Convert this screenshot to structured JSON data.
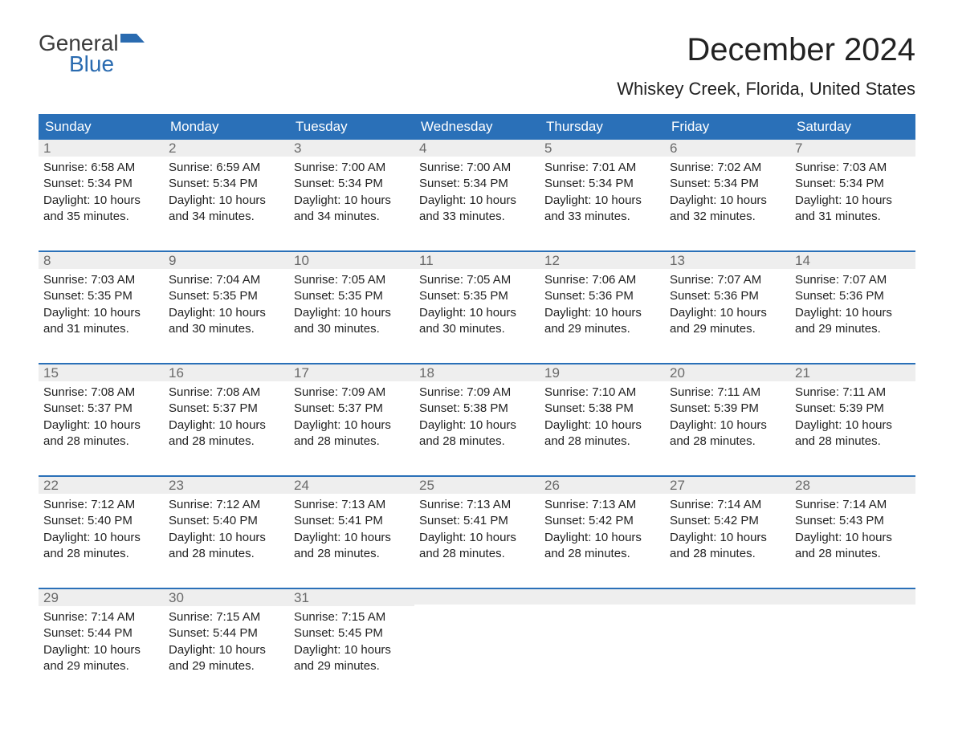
{
  "logo": {
    "general": "General",
    "blue": "Blue"
  },
  "title": "December 2024",
  "subtitle": "Whiskey Creek, Florida, United States",
  "colors": {
    "header_bg": "#2a70b8",
    "header_text": "#ffffff",
    "daynum_bg": "#eeeeee",
    "daynum_text": "#6a6a6a",
    "body_text": "#222222",
    "logo_blue": "#2a6bb0",
    "background": "#ffffff"
  },
  "day_headers": [
    "Sunday",
    "Monday",
    "Tuesday",
    "Wednesday",
    "Thursday",
    "Friday",
    "Saturday"
  ],
  "weeks": [
    [
      {
        "n": "1",
        "sunrise": "Sunrise: 6:58 AM",
        "sunset": "Sunset: 5:34 PM",
        "dl1": "Daylight: 10 hours",
        "dl2": "and 35 minutes."
      },
      {
        "n": "2",
        "sunrise": "Sunrise: 6:59 AM",
        "sunset": "Sunset: 5:34 PM",
        "dl1": "Daylight: 10 hours",
        "dl2": "and 34 minutes."
      },
      {
        "n": "3",
        "sunrise": "Sunrise: 7:00 AM",
        "sunset": "Sunset: 5:34 PM",
        "dl1": "Daylight: 10 hours",
        "dl2": "and 34 minutes."
      },
      {
        "n": "4",
        "sunrise": "Sunrise: 7:00 AM",
        "sunset": "Sunset: 5:34 PM",
        "dl1": "Daylight: 10 hours",
        "dl2": "and 33 minutes."
      },
      {
        "n": "5",
        "sunrise": "Sunrise: 7:01 AM",
        "sunset": "Sunset: 5:34 PM",
        "dl1": "Daylight: 10 hours",
        "dl2": "and 33 minutes."
      },
      {
        "n": "6",
        "sunrise": "Sunrise: 7:02 AM",
        "sunset": "Sunset: 5:34 PM",
        "dl1": "Daylight: 10 hours",
        "dl2": "and 32 minutes."
      },
      {
        "n": "7",
        "sunrise": "Sunrise: 7:03 AM",
        "sunset": "Sunset: 5:34 PM",
        "dl1": "Daylight: 10 hours",
        "dl2": "and 31 minutes."
      }
    ],
    [
      {
        "n": "8",
        "sunrise": "Sunrise: 7:03 AM",
        "sunset": "Sunset: 5:35 PM",
        "dl1": "Daylight: 10 hours",
        "dl2": "and 31 minutes."
      },
      {
        "n": "9",
        "sunrise": "Sunrise: 7:04 AM",
        "sunset": "Sunset: 5:35 PM",
        "dl1": "Daylight: 10 hours",
        "dl2": "and 30 minutes."
      },
      {
        "n": "10",
        "sunrise": "Sunrise: 7:05 AM",
        "sunset": "Sunset: 5:35 PM",
        "dl1": "Daylight: 10 hours",
        "dl2": "and 30 minutes."
      },
      {
        "n": "11",
        "sunrise": "Sunrise: 7:05 AM",
        "sunset": "Sunset: 5:35 PM",
        "dl1": "Daylight: 10 hours",
        "dl2": "and 30 minutes."
      },
      {
        "n": "12",
        "sunrise": "Sunrise: 7:06 AM",
        "sunset": "Sunset: 5:36 PM",
        "dl1": "Daylight: 10 hours",
        "dl2": "and 29 minutes."
      },
      {
        "n": "13",
        "sunrise": "Sunrise: 7:07 AM",
        "sunset": "Sunset: 5:36 PM",
        "dl1": "Daylight: 10 hours",
        "dl2": "and 29 minutes."
      },
      {
        "n": "14",
        "sunrise": "Sunrise: 7:07 AM",
        "sunset": "Sunset: 5:36 PM",
        "dl1": "Daylight: 10 hours",
        "dl2": "and 29 minutes."
      }
    ],
    [
      {
        "n": "15",
        "sunrise": "Sunrise: 7:08 AM",
        "sunset": "Sunset: 5:37 PM",
        "dl1": "Daylight: 10 hours",
        "dl2": "and 28 minutes."
      },
      {
        "n": "16",
        "sunrise": "Sunrise: 7:08 AM",
        "sunset": "Sunset: 5:37 PM",
        "dl1": "Daylight: 10 hours",
        "dl2": "and 28 minutes."
      },
      {
        "n": "17",
        "sunrise": "Sunrise: 7:09 AM",
        "sunset": "Sunset: 5:37 PM",
        "dl1": "Daylight: 10 hours",
        "dl2": "and 28 minutes."
      },
      {
        "n": "18",
        "sunrise": "Sunrise: 7:09 AM",
        "sunset": "Sunset: 5:38 PM",
        "dl1": "Daylight: 10 hours",
        "dl2": "and 28 minutes."
      },
      {
        "n": "19",
        "sunrise": "Sunrise: 7:10 AM",
        "sunset": "Sunset: 5:38 PM",
        "dl1": "Daylight: 10 hours",
        "dl2": "and 28 minutes."
      },
      {
        "n": "20",
        "sunrise": "Sunrise: 7:11 AM",
        "sunset": "Sunset: 5:39 PM",
        "dl1": "Daylight: 10 hours",
        "dl2": "and 28 minutes."
      },
      {
        "n": "21",
        "sunrise": "Sunrise: 7:11 AM",
        "sunset": "Sunset: 5:39 PM",
        "dl1": "Daylight: 10 hours",
        "dl2": "and 28 minutes."
      }
    ],
    [
      {
        "n": "22",
        "sunrise": "Sunrise: 7:12 AM",
        "sunset": "Sunset: 5:40 PM",
        "dl1": "Daylight: 10 hours",
        "dl2": "and 28 minutes."
      },
      {
        "n": "23",
        "sunrise": "Sunrise: 7:12 AM",
        "sunset": "Sunset: 5:40 PM",
        "dl1": "Daylight: 10 hours",
        "dl2": "and 28 minutes."
      },
      {
        "n": "24",
        "sunrise": "Sunrise: 7:13 AM",
        "sunset": "Sunset: 5:41 PM",
        "dl1": "Daylight: 10 hours",
        "dl2": "and 28 minutes."
      },
      {
        "n": "25",
        "sunrise": "Sunrise: 7:13 AM",
        "sunset": "Sunset: 5:41 PM",
        "dl1": "Daylight: 10 hours",
        "dl2": "and 28 minutes."
      },
      {
        "n": "26",
        "sunrise": "Sunrise: 7:13 AM",
        "sunset": "Sunset: 5:42 PM",
        "dl1": "Daylight: 10 hours",
        "dl2": "and 28 minutes."
      },
      {
        "n": "27",
        "sunrise": "Sunrise: 7:14 AM",
        "sunset": "Sunset: 5:42 PM",
        "dl1": "Daylight: 10 hours",
        "dl2": "and 28 minutes."
      },
      {
        "n": "28",
        "sunrise": "Sunrise: 7:14 AM",
        "sunset": "Sunset: 5:43 PM",
        "dl1": "Daylight: 10 hours",
        "dl2": "and 28 minutes."
      }
    ],
    [
      {
        "n": "29",
        "sunrise": "Sunrise: 7:14 AM",
        "sunset": "Sunset: 5:44 PM",
        "dl1": "Daylight: 10 hours",
        "dl2": "and 29 minutes."
      },
      {
        "n": "30",
        "sunrise": "Sunrise: 7:15 AM",
        "sunset": "Sunset: 5:44 PM",
        "dl1": "Daylight: 10 hours",
        "dl2": "and 29 minutes."
      },
      {
        "n": "31",
        "sunrise": "Sunrise: 7:15 AM",
        "sunset": "Sunset: 5:45 PM",
        "dl1": "Daylight: 10 hours",
        "dl2": "and 29 minutes."
      },
      null,
      null,
      null,
      null
    ]
  ]
}
